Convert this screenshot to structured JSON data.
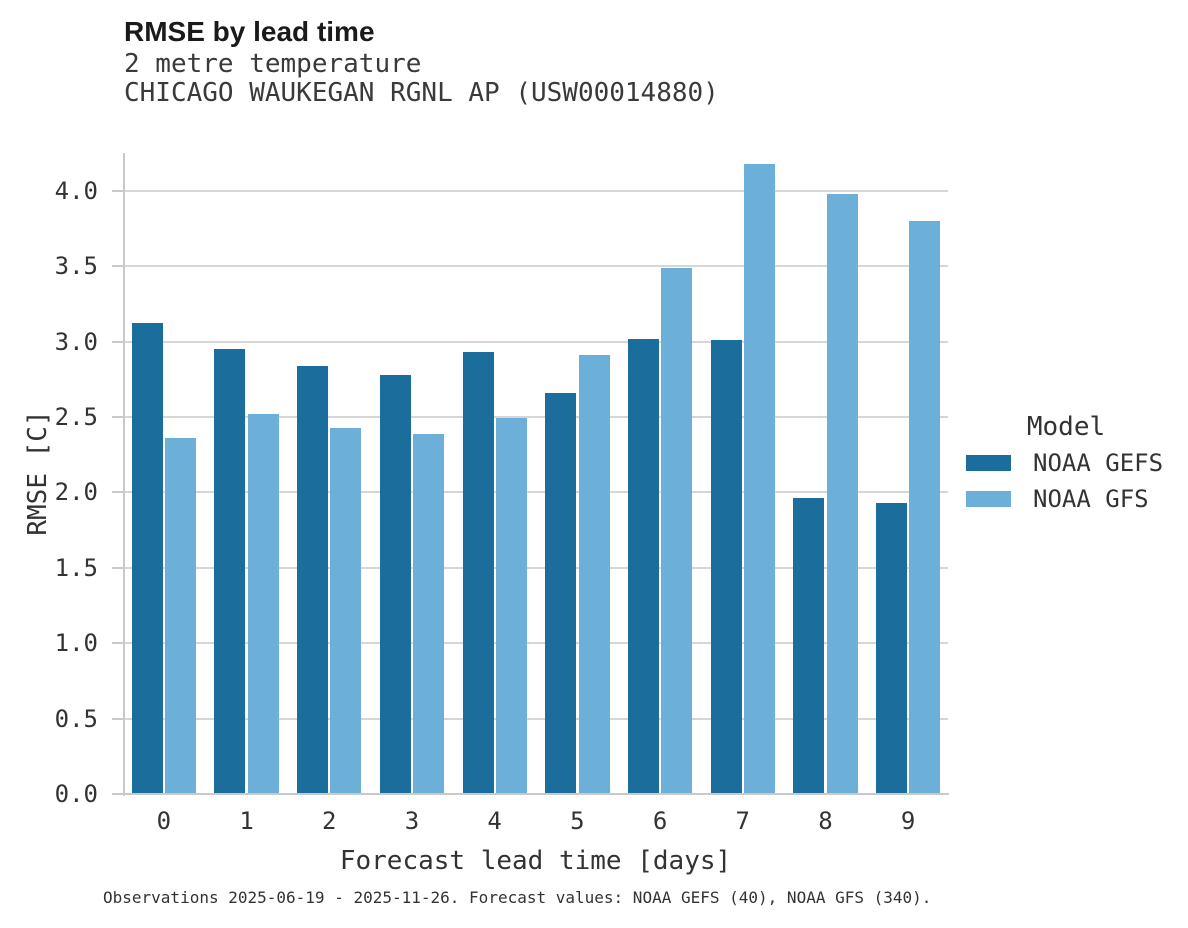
{
  "header": {
    "title": "RMSE by lead time",
    "subtitle": "2 metre temperature",
    "station": "CHICAGO WAUKEGAN RGNL AP (USW00014880)"
  },
  "caption": "Observations 2025-06-19 - 2025-11-26. Forecast values: NOAA GEFS (40), NOAA GFS (340).",
  "chart_data": {
    "type": "bar",
    "title": "RMSE by lead time",
    "subtitle": "2 metre temperature",
    "station": "CHICAGO WAUKEGAN RGNL AP (USW00014880)",
    "xlabel": "Forecast lead time [days]",
    "ylabel": "RMSE [C]",
    "categories": [
      "0",
      "1",
      "2",
      "3",
      "4",
      "5",
      "6",
      "7",
      "8",
      "9"
    ],
    "series": [
      {
        "name": "NOAA GEFS",
        "color": "#1B6E9C",
        "values": [
          3.12,
          2.95,
          2.84,
          2.78,
          2.93,
          2.66,
          3.02,
          3.01,
          1.96,
          1.93
        ]
      },
      {
        "name": "NOAA GFS",
        "color": "#6CAFD9",
        "values": [
          2.36,
          2.52,
          2.43,
          2.39,
          2.49,
          2.91,
          3.49,
          4.18,
          3.98,
          3.8
        ]
      }
    ],
    "ylim": [
      0,
      4.25
    ],
    "yticks": [
      0.0,
      0.5,
      1.0,
      1.5,
      2.0,
      2.5,
      3.0,
      3.5,
      4.0
    ],
    "grid": "horizontal",
    "legend_title": "Model",
    "legend_position": "right",
    "colors": {
      "grid": "#d6d6d6",
      "axis": "#c9c9c9",
      "text": "#333333"
    }
  }
}
